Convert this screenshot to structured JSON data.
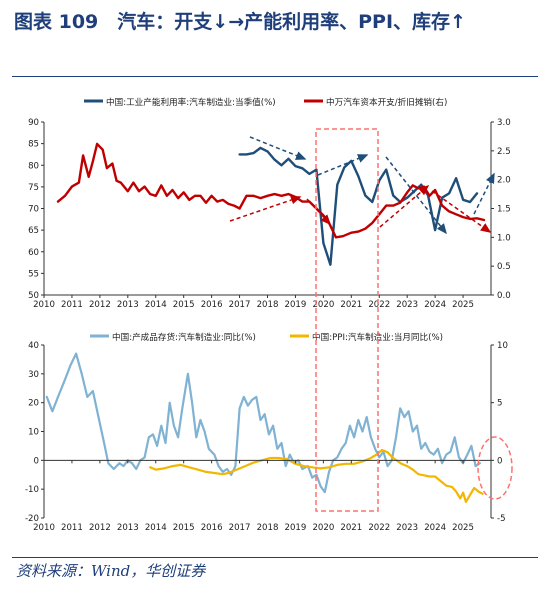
{
  "figure": {
    "title": "图表 109　汽车：开支↓→产能利用率、PPI、库存↑",
    "source": "资料来源：Wind，华创证券"
  },
  "colors": {
    "navy": "#1f4e79",
    "red": "#c00000",
    "lightblue": "#7fb2d3",
    "yellow": "#f2b700",
    "highlight": "#ff7070"
  },
  "chart_data": [
    {
      "type": "line",
      "x_ticks": [
        "2010",
        "2011",
        "2012",
        "2013",
        "2014",
        "2015",
        "2016",
        "2017",
        "2018",
        "2019",
        "2020",
        "2021",
        "2022",
        "2023",
        "2024",
        "2025"
      ],
      "y_left": {
        "min": 50,
        "max": 90,
        "ticks": [
          "50",
          "55",
          "60",
          "65",
          "70",
          "75",
          "80",
          "85",
          "90"
        ]
      },
      "y_right": {
        "min": 0.0,
        "max": 3.0,
        "ticks": [
          "0.0",
          "0.5",
          "1.0",
          "1.5",
          "2.0",
          "2.5",
          "3.0"
        ]
      },
      "legend_position": "top",
      "series": [
        {
          "name": "中国:工业产能利用率:汽车制造业:当季值(%)",
          "axis": "left",
          "points": [
            [
              2017.0,
              82.5
            ],
            [
              2017.25,
              82.5
            ],
            [
              2017.5,
              82.8
            ],
            [
              2017.75,
              84.0
            ],
            [
              2018.0,
              83.2
            ],
            [
              2018.25,
              81.3
            ],
            [
              2018.5,
              80.0
            ],
            [
              2018.75,
              81.5
            ],
            [
              2019.0,
              79.8
            ],
            [
              2019.25,
              79.3
            ],
            [
              2019.5,
              78.0
            ],
            [
              2019.75,
              79.0
            ],
            [
              2020.0,
              62.0
            ],
            [
              2020.25,
              57.0
            ],
            [
              2020.5,
              75.5
            ],
            [
              2020.75,
              79.5
            ],
            [
              2021.0,
              81.0
            ],
            [
              2021.25,
              77.5
            ],
            [
              2021.5,
              73.0
            ],
            [
              2021.75,
              71.5
            ],
            [
              2022.0,
              76.5
            ],
            [
              2022.25,
              79.0
            ],
            [
              2022.5,
              73.0
            ],
            [
              2022.75,
              71.5
            ],
            [
              2023.0,
              72.5
            ],
            [
              2023.25,
              74.0
            ],
            [
              2023.5,
              75.5
            ],
            [
              2023.75,
              73.0
            ],
            [
              2024.0,
              65.0
            ],
            [
              2024.25,
              72.5
            ],
            [
              2024.5,
              73.5
            ],
            [
              2024.75,
              77.0
            ],
            [
              2025.0,
              72.0
            ],
            [
              2025.25,
              71.5
            ],
            [
              2025.5,
              73.5
            ]
          ]
        },
        {
          "name": "中万汽车资本开支/折旧摊销(右)",
          "axis": "right",
          "points": [
            [
              2010.5,
              1.62
            ],
            [
              2010.75,
              1.72
            ],
            [
              2011.0,
              1.88
            ],
            [
              2011.25,
              1.95
            ],
            [
              2011.4,
              2.42
            ],
            [
              2011.6,
              2.05
            ],
            [
              2011.75,
              2.32
            ],
            [
              2011.9,
              2.62
            ],
            [
              2012.1,
              2.52
            ],
            [
              2012.25,
              2.2
            ],
            [
              2012.45,
              2.28
            ],
            [
              2012.6,
              1.98
            ],
            [
              2012.75,
              1.95
            ],
            [
              2013.0,
              1.8
            ],
            [
              2013.2,
              1.95
            ],
            [
              2013.4,
              1.8
            ],
            [
              2013.6,
              1.88
            ],
            [
              2013.8,
              1.75
            ],
            [
              2014.0,
              1.72
            ],
            [
              2014.2,
              1.9
            ],
            [
              2014.4,
              1.72
            ],
            [
              2014.6,
              1.82
            ],
            [
              2014.8,
              1.68
            ],
            [
              2015.0,
              1.78
            ],
            [
              2015.2,
              1.65
            ],
            [
              2015.4,
              1.72
            ],
            [
              2015.6,
              1.72
            ],
            [
              2015.8,
              1.6
            ],
            [
              2016.0,
              1.72
            ],
            [
              2016.2,
              1.62
            ],
            [
              2016.4,
              1.65
            ],
            [
              2016.6,
              1.58
            ],
            [
              2016.8,
              1.55
            ],
            [
              2017.0,
              1.5
            ],
            [
              2017.25,
              1.72
            ],
            [
              2017.5,
              1.72
            ],
            [
              2017.75,
              1.68
            ],
            [
              2018.0,
              1.72
            ],
            [
              2018.25,
              1.75
            ],
            [
              2018.5,
              1.72
            ],
            [
              2018.75,
              1.75
            ],
            [
              2019.0,
              1.7
            ],
            [
              2019.25,
              1.62
            ],
            [
              2019.5,
              1.62
            ],
            [
              2019.75,
              1.5
            ],
            [
              2020.0,
              1.38
            ],
            [
              2020.2,
              1.25
            ],
            [
              2020.45,
              1.0
            ],
            [
              2020.7,
              1.02
            ],
            [
              2021.0,
              1.08
            ],
            [
              2021.25,
              1.1
            ],
            [
              2021.5,
              1.15
            ],
            [
              2021.75,
              1.25
            ],
            [
              2022.0,
              1.4
            ],
            [
              2022.25,
              1.55
            ],
            [
              2022.5,
              1.55
            ],
            [
              2022.75,
              1.6
            ],
            [
              2023.0,
              1.78
            ],
            [
              2023.2,
              1.9
            ],
            [
              2023.4,
              1.85
            ],
            [
              2023.6,
              1.88
            ],
            [
              2023.8,
              1.72
            ],
            [
              2024.0,
              1.82
            ],
            [
              2024.25,
              1.55
            ],
            [
              2024.5,
              1.45
            ],
            [
              2024.75,
              1.4
            ],
            [
              2025.0,
              1.35
            ],
            [
              2025.25,
              1.32
            ],
            [
              2025.5,
              1.33
            ],
            [
              2025.75,
              1.3
            ]
          ]
        }
      ]
    },
    {
      "type": "line",
      "x_ticks": [
        "2010",
        "2011",
        "2012",
        "2013",
        "2014",
        "2015",
        "2016",
        "2017",
        "2018",
        "2019",
        "2020",
        "2021",
        "2022",
        "2023",
        "2024",
        "2025"
      ],
      "y_left": {
        "min": -20,
        "max": 40,
        "ticks": [
          "-20",
          "-10",
          "0",
          "10",
          "20",
          "30",
          "40"
        ]
      },
      "y_right": {
        "min": -5,
        "max": 10,
        "ticks": [
          "-5",
          "0",
          "5",
          "10"
        ]
      },
      "legend_position": "top",
      "series": [
        {
          "name": "中国:产成品存货:汽车制造业:同比(%)",
          "axis": "left",
          "points": [
            [
              2010.1,
              22
            ],
            [
              2010.3,
              17
            ],
            [
              2010.5,
              22
            ],
            [
              2010.75,
              28
            ],
            [
              2010.95,
              33
            ],
            [
              2011.15,
              37
            ],
            [
              2011.35,
              30
            ],
            [
              2011.55,
              22
            ],
            [
              2011.75,
              24
            ],
            [
              2011.95,
              15
            ],
            [
              2012.15,
              6
            ],
            [
              2012.3,
              -1
            ],
            [
              2012.5,
              -3
            ],
            [
              2012.7,
              -1
            ],
            [
              2012.85,
              -2
            ],
            [
              2013.0,
              0
            ],
            [
              2013.15,
              -1
            ],
            [
              2013.3,
              -3
            ],
            [
              2013.45,
              0
            ],
            [
              2013.6,
              1
            ],
            [
              2013.75,
              8
            ],
            [
              2013.9,
              9
            ],
            [
              2014.05,
              5
            ],
            [
              2014.2,
              12
            ],
            [
              2014.35,
              6
            ],
            [
              2014.5,
              20
            ],
            [
              2014.65,
              12
            ],
            [
              2014.8,
              8
            ],
            [
              2014.95,
              18
            ],
            [
              2015.15,
              30
            ],
            [
              2015.3,
              20
            ],
            [
              2015.45,
              8
            ],
            [
              2015.6,
              14
            ],
            [
              2015.75,
              10
            ],
            [
              2015.9,
              4
            ],
            [
              2016.1,
              2
            ],
            [
              2016.25,
              -2
            ],
            [
              2016.4,
              -4
            ],
            [
              2016.55,
              -3
            ],
            [
              2016.7,
              -5
            ],
            [
              2016.85,
              -2
            ],
            [
              2017.0,
              18
            ],
            [
              2017.15,
              22
            ],
            [
              2017.3,
              19
            ],
            [
              2017.45,
              21
            ],
            [
              2017.6,
              22
            ],
            [
              2017.75,
              14
            ],
            [
              2017.9,
              16
            ],
            [
              2018.05,
              9
            ],
            [
              2018.2,
              12
            ],
            [
              2018.35,
              4
            ],
            [
              2018.5,
              6
            ],
            [
              2018.65,
              -2
            ],
            [
              2018.8,
              2
            ],
            [
              2018.95,
              -1
            ],
            [
              2019.1,
              0
            ],
            [
              2019.25,
              -3
            ],
            [
              2019.45,
              -2
            ],
            [
              2019.6,
              -6
            ],
            [
              2019.75,
              -5
            ],
            [
              2019.9,
              -9
            ],
            [
              2020.05,
              -11
            ],
            [
              2020.2,
              -4
            ],
            [
              2020.35,
              0
            ],
            [
              2020.5,
              1
            ],
            [
              2020.65,
              4
            ],
            [
              2020.8,
              6
            ],
            [
              2020.95,
              12
            ],
            [
              2021.1,
              8
            ],
            [
              2021.25,
              14
            ],
            [
              2021.4,
              10
            ],
            [
              2021.55,
              15
            ],
            [
              2021.7,
              8
            ],
            [
              2021.85,
              4
            ],
            [
              2022.0,
              1
            ],
            [
              2022.15,
              3
            ],
            [
              2022.3,
              -2
            ],
            [
              2022.45,
              0
            ],
            [
              2022.6,
              8
            ],
            [
              2022.75,
              18
            ],
            [
              2022.9,
              15
            ],
            [
              2023.05,
              17
            ],
            [
              2023.2,
              10
            ],
            [
              2023.35,
              12
            ],
            [
              2023.5,
              4
            ],
            [
              2023.65,
              6
            ],
            [
              2023.8,
              3
            ],
            [
              2023.95,
              2
            ],
            [
              2024.1,
              4
            ],
            [
              2024.25,
              -1
            ],
            [
              2024.4,
              2
            ],
            [
              2024.55,
              3
            ],
            [
              2024.7,
              8
            ],
            [
              2024.85,
              1
            ],
            [
              2025.0,
              -1
            ],
            [
              2025.15,
              2
            ],
            [
              2025.3,
              5
            ],
            [
              2025.45,
              -2
            ],
            [
              2025.6,
              -1
            ]
          ]
        },
        {
          "name": "中国:PPI:汽车制造业:当月同比(%)",
          "axis": "right",
          "points": [
            [
              2013.8,
              -0.6
            ],
            [
              2014.0,
              -0.8
            ],
            [
              2014.3,
              -0.7
            ],
            [
              2014.6,
              -0.5
            ],
            [
              2014.9,
              -0.4
            ],
            [
              2015.2,
              -0.6
            ],
            [
              2015.5,
              -0.8
            ],
            [
              2015.8,
              -1.0
            ],
            [
              2016.1,
              -1.1
            ],
            [
              2016.4,
              -1.2
            ],
            [
              2016.6,
              -1.1
            ],
            [
              2016.9,
              -0.8
            ],
            [
              2017.2,
              -0.5
            ],
            [
              2017.5,
              -0.2
            ],
            [
              2017.8,
              0.0
            ],
            [
              2018.1,
              0.2
            ],
            [
              2018.4,
              0.2
            ],
            [
              2018.7,
              0.1
            ],
            [
              2019.0,
              -0.3
            ],
            [
              2019.3,
              -0.5
            ],
            [
              2019.6,
              -0.6
            ],
            [
              2019.9,
              -0.7
            ],
            [
              2020.2,
              -0.6
            ],
            [
              2020.5,
              -0.4
            ],
            [
              2020.8,
              -0.3
            ],
            [
              2021.1,
              -0.3
            ],
            [
              2021.4,
              -0.1
            ],
            [
              2021.7,
              0.2
            ],
            [
              2021.9,
              0.5
            ],
            [
              2022.1,
              0.9
            ],
            [
              2022.3,
              0.7
            ],
            [
              2022.5,
              0.2
            ],
            [
              2022.8,
              -0.3
            ],
            [
              2023.0,
              -0.5
            ],
            [
              2023.2,
              -0.8
            ],
            [
              2023.4,
              -1.2
            ],
            [
              2023.6,
              -1.3
            ],
            [
              2023.8,
              -1.4
            ],
            [
              2024.0,
              -1.4
            ],
            [
              2024.2,
              -1.8
            ],
            [
              2024.4,
              -2.2
            ],
            [
              2024.6,
              -2.3
            ],
            [
              2024.75,
              -2.7
            ],
            [
              2024.9,
              -3.3
            ],
            [
              2025.0,
              -2.8
            ],
            [
              2025.1,
              -3.6
            ],
            [
              2025.25,
              -3.0
            ],
            [
              2025.4,
              -2.4
            ],
            [
              2025.55,
              -2.7
            ],
            [
              2025.7,
              -2.9
            ]
          ]
        }
      ]
    }
  ]
}
